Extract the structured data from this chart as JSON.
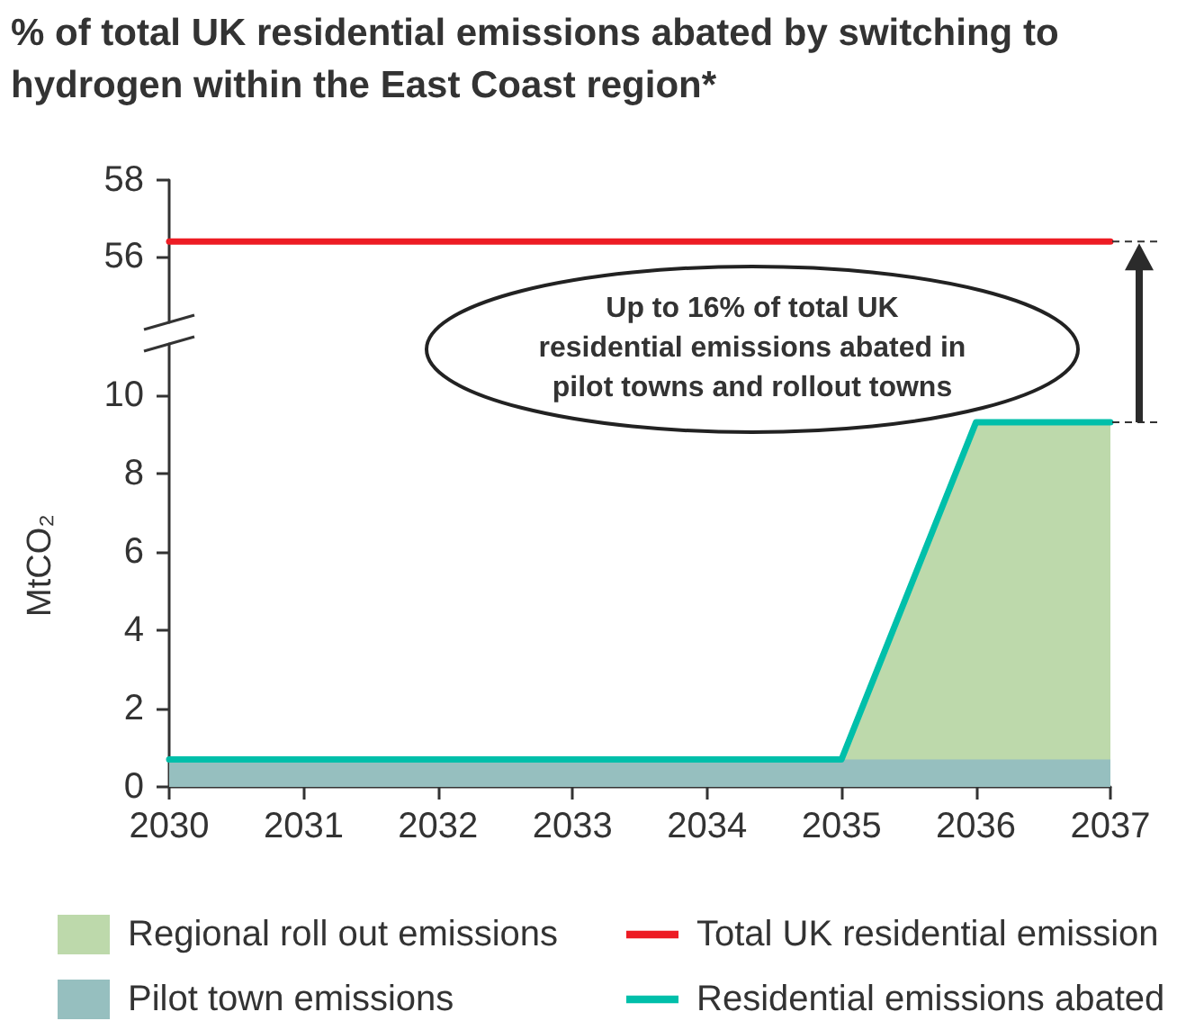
{
  "chart_data": [
    {
      "type": "line",
      "title": "% of total UK residential emissions abated by switching to hydrogen within the East Coast region*",
      "x": [
        2030,
        2031,
        2032,
        2033,
        2034,
        2035,
        2036,
        2037
      ],
      "series": [
        {
          "name": "Total UK residential emission",
          "color": "#ed1c24",
          "values": [
            56.4,
            56.4,
            56.4,
            56.4,
            56.4,
            56.4,
            56.4,
            56.4
          ]
        }
      ],
      "xlim": [
        2030,
        2037
      ],
      "xticks": [
        2030,
        2031,
        2032,
        2033,
        2034,
        2035,
        2036,
        2037
      ],
      "ylim": [
        54.3,
        58
      ],
      "yticks": [
        56,
        58
      ],
      "tick_labels": "y",
      "grid": false,
      "legend": "bottom",
      "marker": "none",
      "line_style": "solid"
    },
    {
      "type": "area",
      "stacked": true,
      "ylabel": "MtCO₂",
      "annotations": [
        "Up to 16% of total UK residential emissions abated in pilot towns and rollout towns"
      ],
      "x": [
        2030,
        2031,
        2032,
        2033,
        2034,
        2035,
        2036,
        2037
      ],
      "series": [
        {
          "name": "Pilot town emissions",
          "color": "#96bfbf",
          "values": [
            0.7,
            0.7,
            0.7,
            0.7,
            0.7,
            0.7,
            0.7,
            0.7
          ]
        },
        {
          "name": "Regional roll out emissions",
          "color": "#bdd9ab",
          "values": [
            0,
            0,
            0,
            0,
            0,
            0,
            8.6,
            8.6
          ]
        },
        {
          "name": "Residential emissions abated",
          "type": "line",
          "color": "#00bfaa",
          "values": [
            0.7,
            0.7,
            0.7,
            0.7,
            0.7,
            0.7,
            9.3,
            9.3
          ]
        }
      ],
      "xlim": [
        2030,
        2037
      ],
      "xticks": [
        2030,
        2031,
        2032,
        2033,
        2034,
        2035,
        2036,
        2037
      ],
      "ylim": [
        0,
        11.3
      ],
      "yticks": [
        0,
        2,
        4,
        6,
        8,
        10
      ],
      "grid": false,
      "legend": "bottom",
      "marker": "none",
      "line_style": "solid"
    }
  ]
}
